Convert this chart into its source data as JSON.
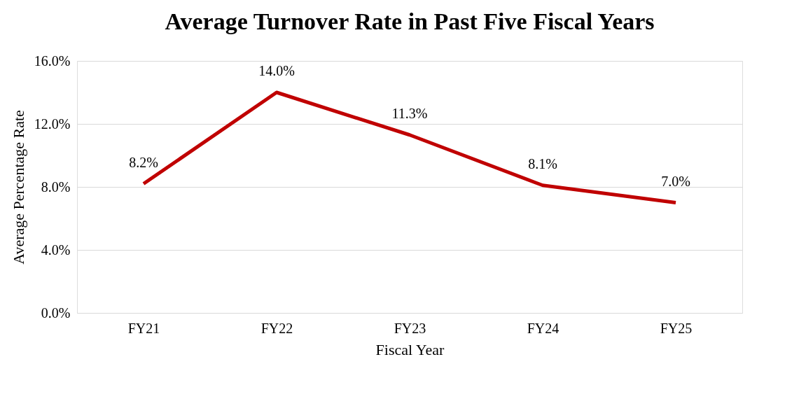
{
  "chart_data": {
    "type": "line",
    "title": "Average Turnover Rate in Past Five Fiscal Years",
    "xlabel": "Fiscal Year",
    "ylabel": "Average Percentage Rate",
    "categories": [
      "FY21",
      "FY22",
      "FY23",
      "FY24",
      "FY25"
    ],
    "series": [
      {
        "color": "#c00000",
        "values": [
          8.2,
          14.0,
          11.3,
          8.1,
          7.0
        ],
        "value_labels": [
          "8.2%",
          "14.0%",
          "11.3%",
          "8.1%",
          "7.0%"
        ]
      }
    ],
    "ylim": [
      0,
      16
    ],
    "yticks": [
      {
        "value": 0,
        "label": "0.0%"
      },
      {
        "value": 4,
        "label": "4.0%"
      },
      {
        "value": 8,
        "label": "8.0%"
      },
      {
        "value": 12,
        "label": "12.0%"
      },
      {
        "value": 16,
        "label": "16.0%"
      }
    ],
    "grid": "y",
    "marker": "none",
    "line_style": "solid"
  }
}
